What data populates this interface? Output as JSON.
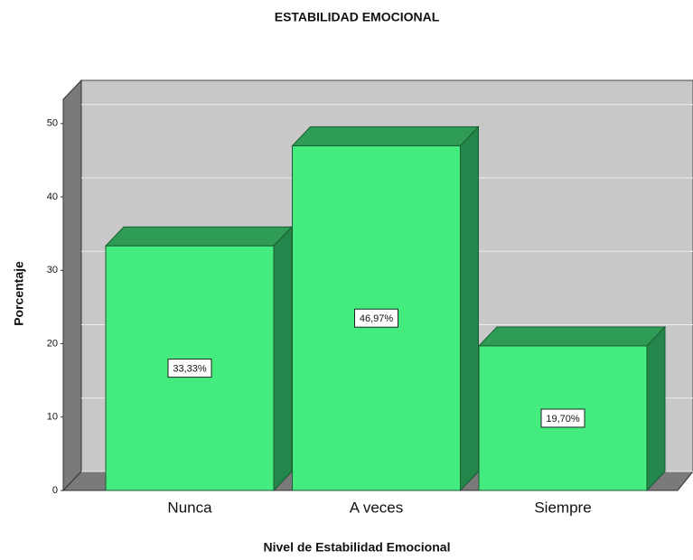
{
  "chart_data": {
    "type": "bar3d",
    "title": "ESTABILIDAD EMOCIONAL",
    "x_label": "Nivel de Estabilidad Emocional",
    "y_label": "Porcentaje",
    "categories": [
      "Nunca",
      "A veces",
      "Siempre"
    ],
    "values": [
      33.33,
      46.97,
      19.7
    ],
    "value_labels": [
      "33,33%",
      "46,97%",
      "19,70%"
    ],
    "color": "#44ec7f",
    "ylim": [
      0,
      53.3
    ],
    "yticks": [
      0,
      10,
      20,
      30,
      40,
      50
    ],
    "grid": true
  }
}
